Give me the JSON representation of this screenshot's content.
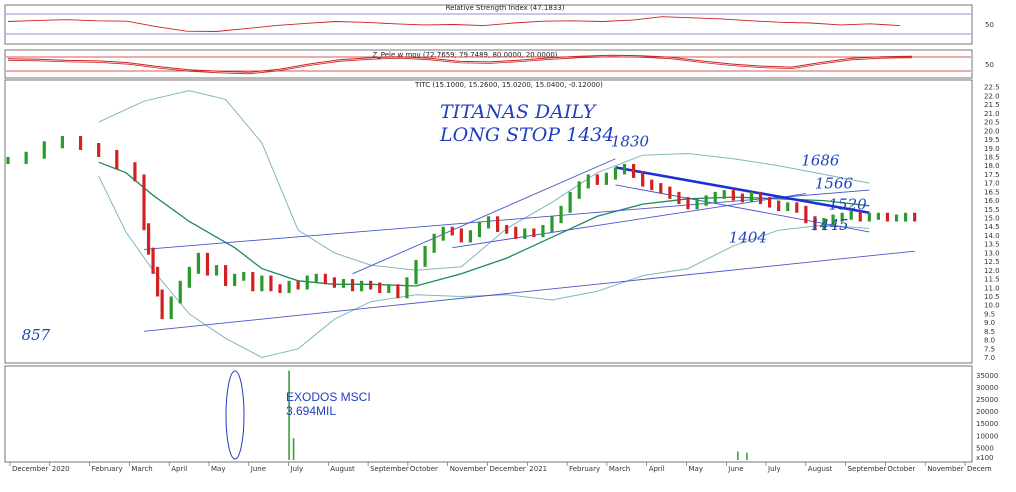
{
  "chart_data": {
    "type": "line",
    "title": "TITANAS DAILY",
    "subtitle": "LONG STOP 1434",
    "indicators": {
      "rsi": "Relative Strength Index (47.1833)",
      "rsi_ticks": [
        "50"
      ],
      "zpele": "Z_Pele w mov (72.7659, 79.7489, 80.0000, 20.0000)",
      "zpele_ticks": [
        "50"
      ],
      "titc": "TITC (15.1000, 15.2600, 15.0200, 15.0400, -0.12000)"
    },
    "price_ticks": [
      "22.5",
      "22.0",
      "21.5",
      "21.0",
      "20.5",
      "20.0",
      "19.5",
      "19.0",
      "18.5",
      "18.0",
      "17.5",
      "17.0",
      "16.5",
      "16.0",
      "15.5",
      "15.0",
      "14.5",
      "14.0",
      "13.5",
      "13.0",
      "12.5",
      "12.0",
      "11.5",
      "11.0",
      "10.5",
      "10.0",
      "9.5",
      "9.0",
      "8.5",
      "8.0",
      "7.5",
      "7.0"
    ],
    "price_range": [
      6.8,
      22.8
    ],
    "volume_ticks": [
      "35000",
      "30000",
      "25000",
      "20000",
      "15000",
      "10000",
      "5000"
    ],
    "volume_range": [
      0,
      38000
    ],
    "volume_axis_label": "x100",
    "x_labels": [
      "December",
      "2020",
      "February",
      "March",
      "April",
      "May",
      "June",
      "July",
      "August",
      "September",
      "October",
      "November",
      "December",
      "2021",
      "February",
      "March",
      "April",
      "May",
      "June",
      "July",
      "August",
      "September",
      "October",
      "November",
      "Decem"
    ],
    "price_x": [
      0,
      4,
      8,
      12,
      16,
      20,
      24,
      28,
      30,
      31,
      32,
      33,
      34,
      36,
      38,
      40,
      42,
      44,
      46,
      48,
      50,
      52,
      54,
      56,
      58,
      60,
      62,
      64,
      66,
      68,
      70,
      72,
      74,
      76,
      78,
      80,
      82,
      84,
      86,
      88,
      90,
      92,
      94,
      96,
      98,
      100,
      102,
      104,
      106,
      108,
      110,
      112,
      114,
      116,
      118,
      120,
      122,
      124,
      126,
      128,
      130,
      132,
      134,
      136,
      138,
      140,
      142,
      144,
      146,
      148,
      150,
      152,
      154,
      156,
      158,
      160,
      162,
      164,
      166,
      168,
      170,
      172,
      174,
      176,
      178,
      180,
      182,
      184,
      186,
      188,
      190,
      192,
      194,
      196,
      198,
      200
    ],
    "price_close": [
      18.3,
      18.6,
      19.2,
      19.5,
      19.1,
      18.7,
      18.0,
      17.3,
      14.5,
      13.1,
      12.0,
      10.7,
      9.4,
      10.3,
      11.2,
      12.0,
      12.8,
      11.9,
      12.1,
      11.3,
      11.6,
      11.7,
      11.0,
      11.5,
      11.0,
      10.9,
      11.2,
      11.1,
      11.5,
      11.6,
      11.4,
      11.2,
      11.3,
      11.0,
      11.2,
      11.1,
      10.9,
      11.0,
      10.6,
      11.4,
      12.4,
      13.2,
      13.9,
      14.3,
      14.2,
      13.8,
      14.1,
      14.6,
      14.9,
      14.4,
      14.3,
      14.0,
      14.2,
      14.1,
      14.4,
      14.9,
      15.5,
      16.3,
      16.9,
      17.3,
      17.1,
      17.4,
      17.7,
      17.9,
      17.5,
      17.0,
      16.8,
      16.6,
      16.3,
      16.0,
      15.7,
      15.9,
      16.1,
      16.3,
      16.4,
      16.2,
      16.1,
      16.3,
      16.0,
      15.8,
      15.6,
      15.7,
      15.5,
      14.9,
      14.5,
      14.8,
      15.0,
      15.1,
      15.2,
      15.0,
      15.1,
      15.1,
      15.0,
      15.0,
      15.1,
      15.0
    ],
    "volume_spikes": [
      {
        "x": 62,
        "value": 36940
      },
      {
        "x": 63,
        "value": 9000
      },
      {
        "x": 161,
        "value": 3500
      },
      {
        "x": 163,
        "value": 3000
      }
    ],
    "annotations": [
      {
        "label": "1830",
        "x": 133,
        "y": 19.1
      },
      {
        "label": "1686",
        "x": 175,
        "y": 18.0
      },
      {
        "label": "1566",
        "x": 178,
        "y": 16.7
      },
      {
        "label": "1520",
        "x": 181,
        "y": 15.5
      },
      {
        "label": "1445",
        "x": 177,
        "y": 14.3
      },
      {
        "label": "1404",
        "x": 159,
        "y": 13.6
      },
      {
        "label": "857",
        "x": 3,
        "y": 8.0
      }
    ],
    "volume_note": {
      "line1": "EXODOS MSCI",
      "line2": "3.694MIL"
    },
    "trendlines": [
      {
        "name": "lower-support",
        "x": [
          30,
          200
        ],
        "y": [
          8.5,
          13.1
        ],
        "color": "#4455cc"
      },
      {
        "name": "upper-line",
        "x": [
          30,
          190
        ],
        "y": [
          13.2,
          16.6
        ],
        "color": "#4455cc"
      },
      {
        "name": "channel-top",
        "x": [
          76,
          134
        ],
        "y": [
          11.8,
          18.4
        ],
        "color": "#4455cc"
      },
      {
        "name": "channel-bottom",
        "x": [
          98,
          176
        ],
        "y": [
          13.3,
          16.4
        ],
        "color": "#4455cc"
      },
      {
        "name": "downtrend",
        "x": [
          134,
          190
        ],
        "y": [
          17.9,
          15.3
        ],
        "color": "#1d2fd8"
      },
      {
        "name": "lower-channel",
        "x": [
          134,
          190
        ],
        "y": [
          16.9,
          14.2
        ],
        "color": "#4455cc"
      }
    ],
    "moving_average": {
      "x": [
        20,
        26,
        32,
        40,
        50,
        56,
        64,
        72,
        80,
        90,
        100,
        110,
        120,
        130,
        140,
        150,
        160,
        170,
        180,
        190
      ],
      "y": [
        18.2,
        17.6,
        16.3,
        14.8,
        13.3,
        12.1,
        11.4,
        11.2,
        11.2,
        11.1,
        11.8,
        12.7,
        13.9,
        15.1,
        15.8,
        16.1,
        16.2,
        16.1,
        16.0,
        15.7
      ],
      "color": "#1e8a5e"
    },
    "bands_upper": {
      "x": [
        20,
        30,
        40,
        48,
        56,
        64,
        72,
        80,
        90,
        100,
        110,
        120,
        130,
        140,
        150,
        160,
        170,
        180,
        190
      ],
      "y": [
        20.5,
        21.7,
        22.3,
        21.8,
        19.3,
        14.3,
        13.0,
        12.3,
        12.0,
        12.2,
        14.4,
        15.9,
        17.6,
        18.6,
        18.7,
        18.4,
        18.0,
        17.5,
        17.0
      ],
      "color": "#7fb8b8"
    },
    "bands_lower": {
      "x": [
        20,
        26,
        32,
        40,
        48,
        56,
        64,
        72,
        80,
        90,
        100,
        110,
        120,
        130,
        140,
        150,
        160,
        170,
        180,
        190
      ],
      "y": [
        17.4,
        14.2,
        12.0,
        9.5,
        8.1,
        7.0,
        7.5,
        9.2,
        10.2,
        10.6,
        10.5,
        10.6,
        10.3,
        10.8,
        11.7,
        12.1,
        13.4,
        14.3,
        14.6,
        14.4
      ],
      "color": "#7fb8b8"
    },
    "rsi_values": [
      58,
      61,
      63,
      60,
      59,
      44,
      32,
      31,
      39,
      47,
      53,
      58,
      56,
      52,
      49,
      50,
      47,
      54,
      59,
      60,
      58,
      62,
      71,
      68,
      65,
      60,
      56,
      54,
      49,
      52,
      47
    ],
    "zpele_values": [
      70,
      68,
      64,
      62,
      55,
      40,
      28,
      22,
      18,
      30,
      50,
      66,
      74,
      78,
      72,
      60,
      58,
      65,
      74,
      80,
      84,
      82,
      76,
      62,
      50,
      42,
      38,
      56,
      72,
      78,
      80
    ]
  }
}
